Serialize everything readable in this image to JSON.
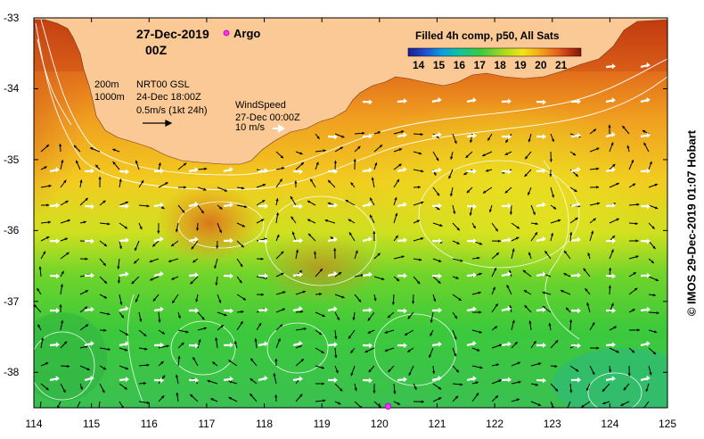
{
  "title": {
    "date": "27-Dec-2019",
    "hour": "00Z",
    "argo_label": "Argo",
    "product": "Filled 4h comp, p50, All Sats"
  },
  "colorbar": {
    "ticks": [
      "14",
      "15",
      "16",
      "17",
      "18",
      "19",
      "20",
      "21"
    ],
    "colors": [
      "#1f1f8f",
      "#1f4fd0",
      "#0c9fe0",
      "#12c49a",
      "#3cc940",
      "#a8d820",
      "#f4e41a",
      "#f6a81a",
      "#e8641a",
      "#b83010",
      "#7a1806"
    ]
  },
  "legend": {
    "contour_200": "200m",
    "contour_1000": "1000m",
    "current_source": "NRT00 GSL",
    "current_time": "24-Dec 18:00Z",
    "current_scale": "0.5m/s (1kt 24h)",
    "wind_title": "WindSpeed",
    "wind_time": "27-Dec 00:00Z",
    "wind_scale": "10 m/s"
  },
  "axes": {
    "lon_ticks": [
      "114",
      "115",
      "116",
      "117",
      "118",
      "119",
      "120",
      "121",
      "122",
      "123",
      "124",
      "125"
    ],
    "lat_ticks": [
      "-33",
      "-34",
      "-35",
      "-36",
      "-37",
      "-38"
    ],
    "lon_range": [
      114,
      125
    ],
    "lat_range": [
      -38.5,
      -33
    ]
  },
  "credit": "© IMOS 29-Dec-2019 01:07 Hobart",
  "colors": {
    "land": "#fbc995",
    "argo_marker": "#ff30ff",
    "contour": "#ffffff",
    "current_arrow": "#000000",
    "wind_arrow": "#ffffff"
  },
  "argo_float": {
    "lon": 120.15,
    "lat": -38.48
  }
}
